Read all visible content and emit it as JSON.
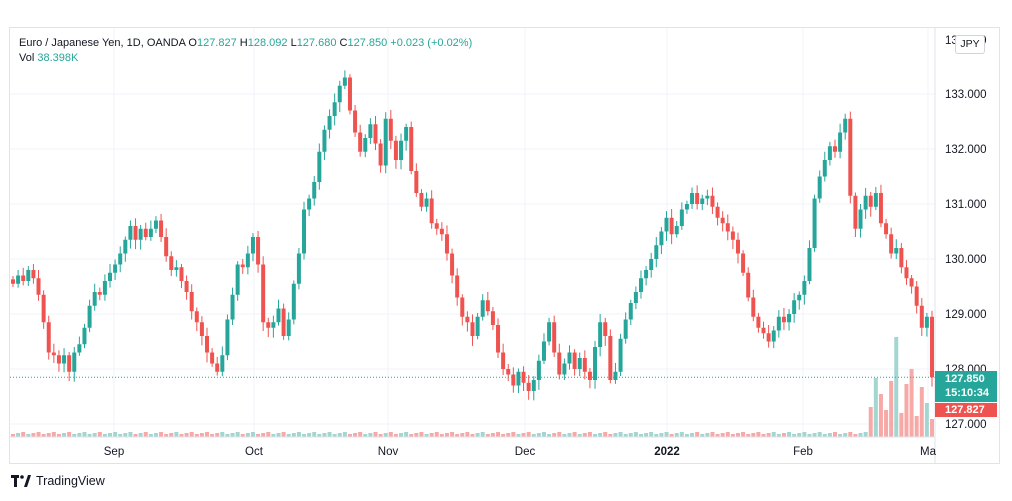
{
  "legend": {
    "symbol": "Euro / Japanese Yen, 1D, OANDA",
    "o_label": "O",
    "o_value": "127.827",
    "h_label": "H",
    "h_value": "128.092",
    "l_label": "L",
    "l_value": "127.680",
    "c_label": "C",
    "c_value": "127.850",
    "change": "+0.023 (+0.02%)",
    "vol_label": "Vol",
    "vol_value": "38.398K"
  },
  "currency_button": "JPY",
  "price_axis": {
    "ticks": [
      "133.000",
      "132.000",
      "131.000",
      "130.000",
      "129.000",
      "128.000",
      "127.000"
    ],
    "top_partial_tick": "134.000"
  },
  "price_tags": {
    "close_price": "127.850",
    "countdown": "15:10:34",
    "open_price": "127.827"
  },
  "time_axis": {
    "labels": [
      "Sep",
      "Oct",
      "Nov",
      "Dec",
      "2022",
      "Feb",
      "Ma"
    ]
  },
  "branding": {
    "name": "TradingView"
  },
  "colors": {
    "up": "#26a69a",
    "down": "#ef5350",
    "vol_up": "#a3d6d1",
    "vol_down": "#f7a9a7",
    "grid": "#f0f3fa"
  },
  "chart_data": {
    "type": "candlestick",
    "title": "Euro / Japanese Yen, 1D, OANDA",
    "ylim": [
      126.8,
      134.0
    ],
    "y_ticks": [
      127,
      128,
      129,
      130,
      131,
      132,
      133
    ],
    "last_close": 127.85,
    "x_labels": [
      "Sep",
      "Oct",
      "Nov",
      "Dec",
      "2022",
      "Feb",
      "Ma"
    ],
    "closes": [
      129.55,
      129.7,
      129.6,
      129.8,
      129.65,
      129.35,
      128.85,
      128.3,
      128.25,
      128.1,
      128.25,
      127.95,
      128.3,
      128.45,
      128.75,
      129.15,
      129.4,
      129.35,
      129.6,
      129.75,
      129.9,
      130.1,
      130.35,
      130.6,
      130.35,
      130.55,
      130.4,
      130.55,
      130.7,
      130.4,
      130.05,
      129.8,
      129.85,
      129.6,
      129.4,
      129.05,
      128.85,
      128.6,
      128.3,
      128.1,
      127.95,
      128.25,
      128.9,
      129.35,
      129.9,
      129.85,
      130.1,
      130.4,
      129.9,
      128.85,
      128.75,
      128.85,
      129.1,
      128.6,
      128.9,
      129.55,
      130.1,
      130.9,
      131.1,
      131.4,
      131.95,
      132.35,
      132.6,
      132.85,
      133.15,
      133.3,
      132.7,
      132.3,
      131.95,
      132.2,
      132.45,
      132.1,
      131.7,
      132.55,
      132.15,
      131.8,
      132.15,
      132.4,
      131.6,
      131.2,
      130.95,
      131.1,
      130.65,
      130.55,
      130.45,
      130.1,
      129.7,
      129.3,
      128.95,
      128.85,
      128.6,
      128.95,
      129.25,
      129.05,
      128.8,
      128.3,
      128.0,
      127.9,
      127.7,
      127.95,
      127.75,
      127.6,
      127.8,
      128.15,
      128.5,
      128.85,
      128.3,
      127.9,
      128.1,
      128.3,
      128.0,
      128.2,
      127.95,
      127.8,
      128.4,
      128.85,
      128.6,
      127.8,
      127.95,
      128.55,
      128.9,
      129.2,
      129.4,
      129.65,
      129.8,
      130.0,
      130.25,
      130.5,
      130.75,
      130.45,
      130.6,
      130.9,
      131.0,
      131.2,
      131.0,
      131.1,
      131.15,
      130.95,
      130.75,
      130.65,
      130.5,
      130.35,
      130.1,
      129.75,
      129.3,
      128.95,
      128.75,
      128.65,
      128.5,
      128.7,
      128.95,
      128.85,
      129.0,
      129.25,
      129.35,
      129.6,
      130.2,
      131.1,
      131.5,
      131.8,
      132.05,
      131.95,
      132.3,
      132.55,
      131.15,
      130.55,
      130.9,
      131.15,
      130.95,
      131.2,
      130.65,
      130.45,
      130.1,
      130.2,
      129.85,
      129.65,
      129.5,
      129.15,
      128.75,
      128.95,
      127.85
    ]
  }
}
